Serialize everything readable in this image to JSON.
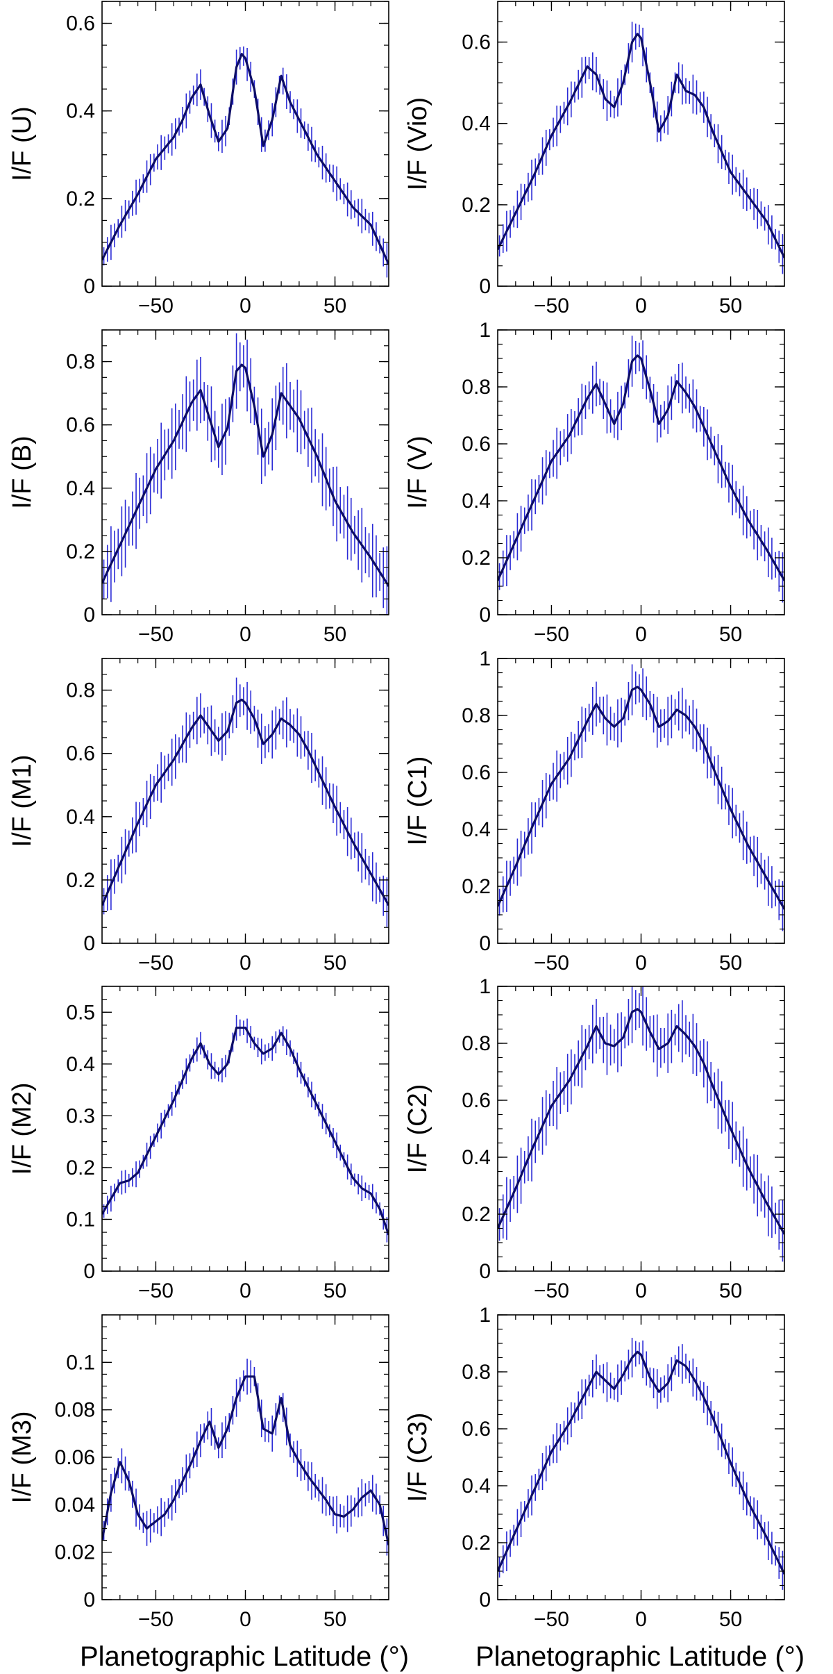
{
  "figure": {
    "xlabel_left": "Planetographic Latitude (°)",
    "xlabel_right": "Planetographic Latitude (°)"
  },
  "colors": {
    "line": "#0d0d66",
    "errorbar": "#2b2bd6",
    "axes": "#000000"
  },
  "chart_data": [
    {
      "type": "line",
      "panel": "U",
      "ylabel": "I/F (U)",
      "xlim": [
        -80,
        80
      ],
      "ylim": [
        0,
        0.65
      ],
      "xticks": [
        -50,
        0,
        50
      ],
      "yticks": [
        0,
        0.2,
        0.4,
        0.6
      ],
      "x": [
        -80,
        -70,
        -60,
        -50,
        -40,
        -35,
        -30,
        -25,
        -20,
        -15,
        -10,
        -5,
        -2,
        0,
        5,
        10,
        15,
        20,
        25,
        30,
        35,
        40,
        50,
        60,
        70,
        80
      ],
      "y": [
        0.06,
        0.14,
        0.21,
        0.29,
        0.34,
        0.38,
        0.43,
        0.46,
        0.39,
        0.33,
        0.36,
        0.5,
        0.53,
        0.52,
        0.45,
        0.32,
        0.38,
        0.48,
        0.42,
        0.38,
        0.34,
        0.3,
        0.24,
        0.18,
        0.14,
        0.05
      ],
      "err": 0.04
    },
    {
      "type": "line",
      "panel": "Vio",
      "ylabel": "I/F (Vio)",
      "xlim": [
        -80,
        80
      ],
      "ylim": [
        0,
        0.7
      ],
      "xticks": [
        -50,
        0,
        50
      ],
      "yticks": [
        0,
        0.2,
        0.4,
        0.6
      ],
      "x": [
        -80,
        -70,
        -60,
        -50,
        -40,
        -30,
        -25,
        -20,
        -15,
        -10,
        -5,
        -2,
        0,
        5,
        10,
        15,
        20,
        25,
        30,
        35,
        40,
        50,
        60,
        70,
        80
      ],
      "y": [
        0.09,
        0.18,
        0.27,
        0.37,
        0.45,
        0.54,
        0.52,
        0.46,
        0.44,
        0.5,
        0.6,
        0.62,
        0.61,
        0.5,
        0.38,
        0.42,
        0.52,
        0.48,
        0.47,
        0.44,
        0.38,
        0.28,
        0.22,
        0.16,
        0.07
      ],
      "err": 0.05
    },
    {
      "type": "line",
      "panel": "B",
      "ylabel": "I/F (B)",
      "xlim": [
        -80,
        80
      ],
      "ylim": [
        0,
        0.9
      ],
      "xticks": [
        -50,
        0,
        50
      ],
      "yticks": [
        0,
        0.2,
        0.4,
        0.6,
        0.8
      ],
      "x": [
        -80,
        -70,
        -60,
        -50,
        -40,
        -30,
        -25,
        -20,
        -15,
        -10,
        -5,
        -2,
        0,
        5,
        10,
        15,
        20,
        25,
        30,
        35,
        40,
        50,
        60,
        70,
        80
      ],
      "y": [
        0.1,
        0.22,
        0.34,
        0.46,
        0.55,
        0.67,
        0.71,
        0.62,
        0.53,
        0.59,
        0.77,
        0.79,
        0.78,
        0.66,
        0.5,
        0.57,
        0.7,
        0.66,
        0.62,
        0.56,
        0.5,
        0.36,
        0.26,
        0.18,
        0.09
      ],
      "err": 0.12
    },
    {
      "type": "line",
      "panel": "V",
      "ylabel": "I/F (V)",
      "xlim": [
        -80,
        80
      ],
      "ylim": [
        0,
        1
      ],
      "xticks": [
        -50,
        0,
        50
      ],
      "yticks": [
        0,
        0.2,
        0.4,
        0.6,
        0.8,
        1
      ],
      "x": [
        -80,
        -70,
        -60,
        -50,
        -40,
        -30,
        -25,
        -20,
        -15,
        -10,
        -5,
        -2,
        0,
        5,
        10,
        15,
        20,
        25,
        30,
        35,
        40,
        50,
        60,
        70,
        80
      ],
      "y": [
        0.12,
        0.26,
        0.4,
        0.54,
        0.63,
        0.76,
        0.81,
        0.74,
        0.67,
        0.74,
        0.89,
        0.91,
        0.9,
        0.79,
        0.67,
        0.72,
        0.82,
        0.78,
        0.73,
        0.66,
        0.59,
        0.45,
        0.33,
        0.23,
        0.12
      ],
      "err": 0.09
    },
    {
      "type": "line",
      "panel": "M1",
      "ylabel": "I/F (M1)",
      "xlim": [
        -80,
        80
      ],
      "ylim": [
        0,
        0.9
      ],
      "xticks": [
        -50,
        0,
        50
      ],
      "yticks": [
        0,
        0.2,
        0.4,
        0.6,
        0.8
      ],
      "x": [
        -80,
        -70,
        -60,
        -50,
        -40,
        -30,
        -25,
        -20,
        -15,
        -10,
        -5,
        -2,
        0,
        5,
        10,
        15,
        20,
        25,
        30,
        35,
        40,
        50,
        60,
        70,
        80
      ],
      "y": [
        0.12,
        0.25,
        0.38,
        0.5,
        0.58,
        0.68,
        0.72,
        0.68,
        0.64,
        0.67,
        0.76,
        0.77,
        0.76,
        0.71,
        0.63,
        0.66,
        0.71,
        0.69,
        0.66,
        0.61,
        0.55,
        0.43,
        0.32,
        0.22,
        0.12
      ],
      "err": 0.08
    },
    {
      "type": "line",
      "panel": "C1",
      "ylabel": "I/F (C1)",
      "xlim": [
        -80,
        80
      ],
      "ylim": [
        0,
        1
      ],
      "xticks": [
        -50,
        0,
        50
      ],
      "yticks": [
        0,
        0.2,
        0.4,
        0.6,
        0.8,
        1
      ],
      "x": [
        -80,
        -70,
        -60,
        -50,
        -40,
        -30,
        -25,
        -20,
        -15,
        -10,
        -5,
        -2,
        0,
        5,
        10,
        15,
        20,
        25,
        30,
        35,
        40,
        50,
        60,
        70,
        80
      ],
      "y": [
        0.13,
        0.27,
        0.42,
        0.56,
        0.65,
        0.78,
        0.84,
        0.79,
        0.76,
        0.79,
        0.89,
        0.9,
        0.89,
        0.84,
        0.76,
        0.78,
        0.82,
        0.8,
        0.76,
        0.7,
        0.62,
        0.47,
        0.34,
        0.23,
        0.12
      ],
      "err": 0.09
    },
    {
      "type": "line",
      "panel": "M2",
      "ylabel": "I/F (M2)",
      "xlim": [
        -80,
        80
      ],
      "ylim": [
        0,
        0.55
      ],
      "xticks": [
        -50,
        0,
        50
      ],
      "yticks": [
        0,
        0.1,
        0.2,
        0.3,
        0.4,
        0.5
      ],
      "x": [
        -80,
        -70,
        -65,
        -60,
        -50,
        -40,
        -30,
        -25,
        -20,
        -15,
        -10,
        -5,
        0,
        5,
        10,
        15,
        20,
        25,
        30,
        40,
        50,
        60,
        65,
        70,
        75,
        80
      ],
      "y": [
        0.11,
        0.17,
        0.175,
        0.19,
        0.26,
        0.33,
        0.41,
        0.44,
        0.4,
        0.38,
        0.4,
        0.47,
        0.47,
        0.44,
        0.42,
        0.43,
        0.46,
        0.43,
        0.39,
        0.32,
        0.25,
        0.18,
        0.16,
        0.15,
        0.12,
        0.07
      ],
      "err": 0.025
    },
    {
      "type": "line",
      "panel": "C2",
      "ylabel": "I/F (C2)",
      "xlim": [
        -80,
        80
      ],
      "ylim": [
        0,
        1
      ],
      "xticks": [
        -50,
        0,
        50
      ],
      "yticks": [
        0,
        0.2,
        0.4,
        0.6,
        0.8,
        1
      ],
      "x": [
        -80,
        -70,
        -60,
        -50,
        -40,
        -30,
        -25,
        -20,
        -15,
        -10,
        -5,
        -2,
        0,
        5,
        10,
        15,
        20,
        25,
        30,
        35,
        40,
        50,
        60,
        70,
        80
      ],
      "y": [
        0.15,
        0.29,
        0.44,
        0.58,
        0.67,
        0.79,
        0.86,
        0.8,
        0.79,
        0.82,
        0.91,
        0.92,
        0.91,
        0.84,
        0.78,
        0.8,
        0.86,
        0.83,
        0.79,
        0.73,
        0.65,
        0.5,
        0.36,
        0.24,
        0.13
      ],
      "err": 0.11
    },
    {
      "type": "line",
      "panel": "M3",
      "ylabel": "I/F (M3)",
      "xlim": [
        -80,
        80
      ],
      "ylim": [
        0,
        0.12
      ],
      "xticks": [
        -50,
        0,
        50
      ],
      "yticks": [
        0,
        0.02,
        0.04,
        0.06,
        0.08,
        0.1
      ],
      "x": [
        -80,
        -75,
        -70,
        -65,
        -60,
        -55,
        -50,
        -45,
        -40,
        -35,
        -30,
        -25,
        -20,
        -15,
        -10,
        -5,
        0,
        5,
        10,
        15,
        20,
        25,
        30,
        35,
        40,
        45,
        50,
        55,
        60,
        65,
        70,
        75,
        80
      ],
      "y": [
        0.025,
        0.045,
        0.058,
        0.05,
        0.036,
        0.03,
        0.033,
        0.036,
        0.042,
        0.05,
        0.058,
        0.067,
        0.075,
        0.064,
        0.072,
        0.085,
        0.094,
        0.094,
        0.072,
        0.07,
        0.085,
        0.065,
        0.058,
        0.052,
        0.047,
        0.042,
        0.036,
        0.035,
        0.038,
        0.043,
        0.046,
        0.04,
        0.023
      ],
      "err": 0.008
    },
    {
      "type": "line",
      "panel": "C3",
      "ylabel": "I/F (C3)",
      "xlim": [
        -80,
        80
      ],
      "ylim": [
        0,
        1
      ],
      "xticks": [
        -50,
        0,
        50
      ],
      "yticks": [
        0,
        0.2,
        0.4,
        0.6,
        0.8,
        1
      ],
      "x": [
        -80,
        -70,
        -60,
        -50,
        -40,
        -30,
        -25,
        -20,
        -15,
        -10,
        -5,
        -2,
        0,
        5,
        10,
        15,
        20,
        25,
        30,
        35,
        40,
        50,
        60,
        70,
        80
      ],
      "y": [
        0.1,
        0.24,
        0.38,
        0.52,
        0.62,
        0.74,
        0.8,
        0.77,
        0.74,
        0.79,
        0.85,
        0.87,
        0.86,
        0.78,
        0.73,
        0.76,
        0.84,
        0.82,
        0.77,
        0.71,
        0.64,
        0.48,
        0.34,
        0.22,
        0.09
      ],
      "err": 0.07
    }
  ]
}
